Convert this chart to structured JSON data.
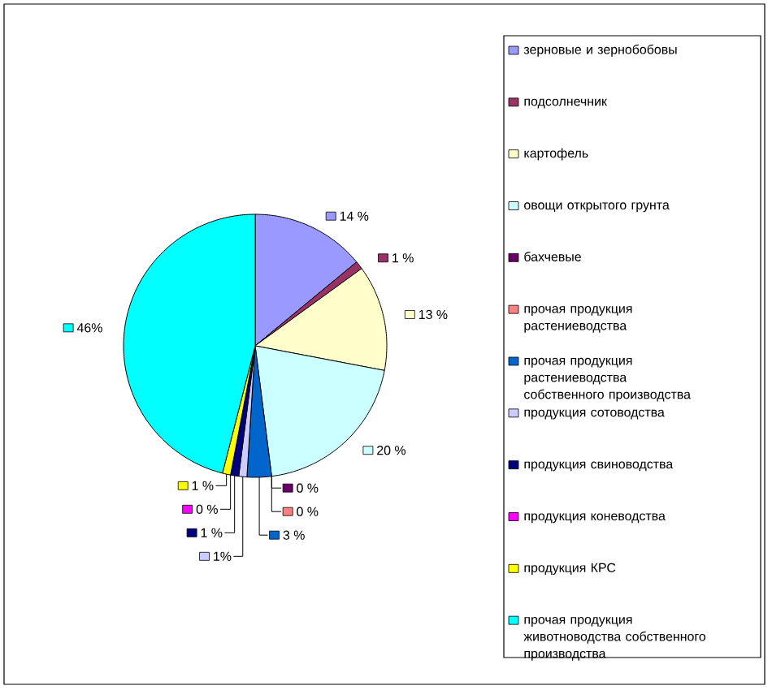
{
  "chart_data": {
    "type": "pie",
    "categories": [
      "зерновые и зернобобовы",
      "подсолнечник",
      "картофель",
      "овощи открытого грунта",
      "бахчевые",
      "прочая продукция растениеводства",
      "прочая продукция растениеводства собственного производства",
      "продукция сотоводства",
      "продукция свиноводства",
      "продукция коневодства",
      "продукция КРС",
      "прочая продукция животноводства собственного производства"
    ],
    "values": [
      14,
      1,
      13,
      20,
      0,
      0,
      3,
      1,
      1,
      0,
      1,
      46
    ],
    "colors": [
      "#9999ff",
      "#993366",
      "#ffffcc",
      "#ccffff",
      "#660066",
      "#ff8080",
      "#0066cc",
      "#ccccff",
      "#000080",
      "#ff00ff",
      "#ffff00",
      "#00ffff"
    ],
    "value_labels": [
      "14 %",
      "1 %",
      "13 %",
      "20 %",
      "0 %",
      "0 %",
      "3 %",
      "1%",
      "1 %",
      "0 %",
      "1 %",
      "46%"
    ],
    "legend": "right"
  }
}
